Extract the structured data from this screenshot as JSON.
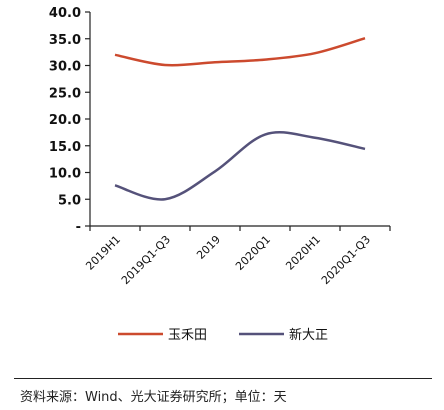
{
  "chart_data": {
    "type": "line",
    "categories": [
      "2019H1",
      "2019Q1-Q3",
      "2019",
      "2020Q1",
      "2020H1",
      "2020Q1-Q3"
    ],
    "series": [
      {
        "name": "玉禾田",
        "color": "#cc4a2e",
        "values": [
          32.0,
          30.1,
          30.6,
          31.1,
          32.3,
          35.1
        ]
      },
      {
        "name": "新大正",
        "color": "#55527a",
        "values": [
          7.6,
          5.0,
          10.2,
          17.1,
          16.5,
          14.4
        ]
      }
    ],
    "yticks": [
      "-",
      "5.0",
      "10.0",
      "15.0",
      "20.0",
      "25.0",
      "30.0",
      "35.0",
      "40.0"
    ],
    "ylim": [
      0,
      40
    ],
    "grid": false,
    "legend_position": "bottom"
  },
  "footer": {
    "source": "资料来源：Wind、光大证券研究所；单位：天"
  }
}
